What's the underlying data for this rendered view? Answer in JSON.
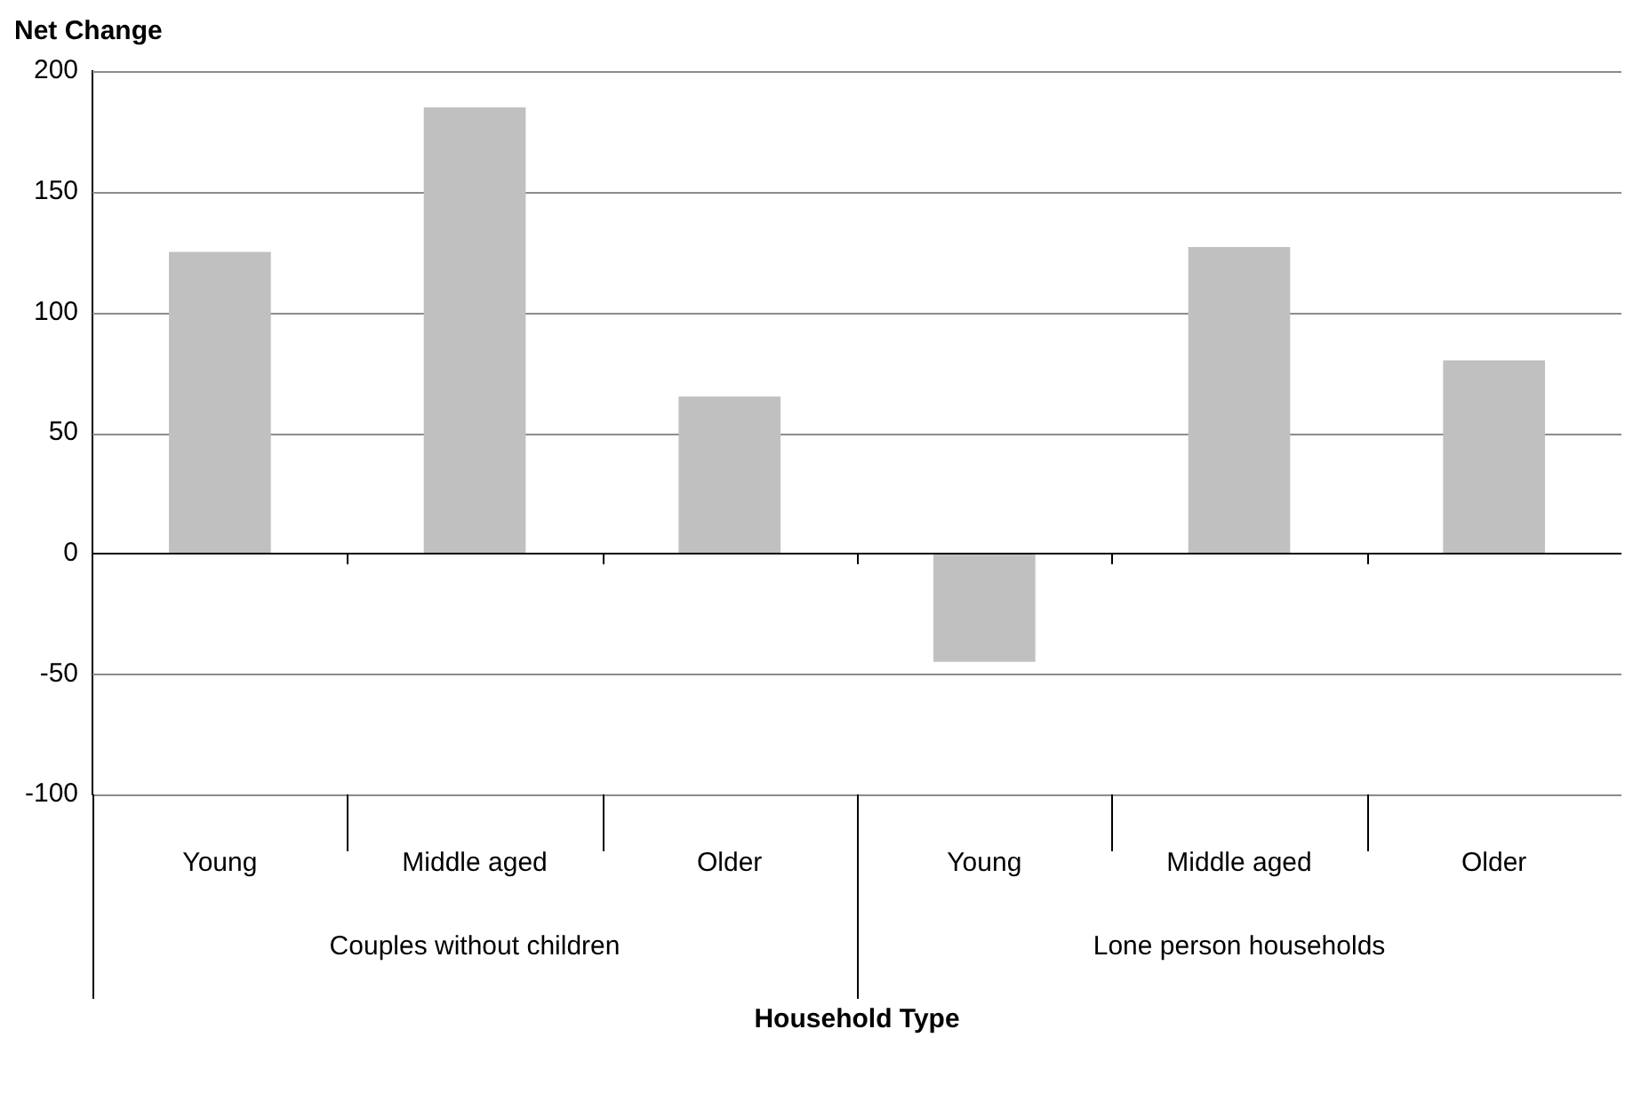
{
  "chart_data": {
    "type": "bar",
    "ylabel": "Net Change",
    "xlabel": "Household Type",
    "categories": [
      "Young",
      "Middle aged",
      "Older",
      "Young",
      "Middle aged",
      "Older"
    ],
    "values": [
      125,
      185,
      65,
      -45,
      127,
      80
    ],
    "color": "#c0c0c0",
    "ylim": [
      -100,
      200
    ],
    "yticks": [
      -100,
      -50,
      0,
      50,
      100,
      150,
      200
    ],
    "grid": "y",
    "legend": false,
    "annotations": [
      "Couples without children",
      "Lone person households"
    ]
  }
}
